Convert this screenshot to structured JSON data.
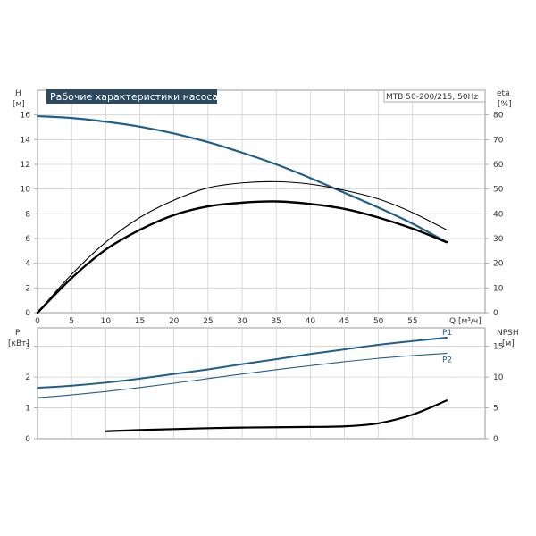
{
  "chart_data": [
    {
      "type": "line",
      "title": "Рабочие характеристики насоса",
      "model": "MTB 50-200/215, 50Hz",
      "xlabel": "Q [м³/ч]",
      "xlim": [
        0,
        60
      ],
      "x_ticks": [
        "0",
        "5",
        "10",
        "15",
        "20",
        "25",
        "30",
        "35",
        "40",
        "45",
        "50",
        "55"
      ],
      "ylabel_left": [
        "H",
        "[м]"
      ],
      "ylim_left": [
        0,
        18
      ],
      "y_ticks_left": [
        "0",
        "2",
        "4",
        "6",
        "8",
        "10",
        "12",
        "14",
        "16"
      ],
      "ylabel_right": [
        "eta",
        "[%]"
      ],
      "ylim_right": [
        0,
        90
      ],
      "y_ticks_right": [
        "0",
        "10",
        "20",
        "30",
        "40",
        "50",
        "60",
        "70",
        "80"
      ],
      "grid": true,
      "colors": {
        "head": "#1f5f8b",
        "efficiency": "#000000",
        "title_bg": "#2d4a5e"
      },
      "series": [
        {
          "axis": "left",
          "x": [
            0,
            5,
            10,
            15,
            20,
            25,
            30,
            35,
            40,
            45,
            50,
            55,
            60
          ],
          "y": [
            15.9,
            15.75,
            15.45,
            15.05,
            14.5,
            13.8,
            12.95,
            12.0,
            10.9,
            9.7,
            8.5,
            7.2,
            5.7
          ]
        },
        {
          "axis": "right",
          "x": [
            0,
            5,
            10,
            15,
            20,
            25,
            30,
            35,
            40,
            45,
            50,
            55,
            60
          ],
          "y": [
            0,
            14,
            25.5,
            33.5,
            39.5,
            43,
            44.5,
            45,
            44,
            42,
            38.5,
            34,
            28.5
          ]
        },
        {
          "axis": "right",
          "x": [
            0,
            5,
            10,
            15,
            20,
            25,
            30,
            35,
            40,
            45,
            50,
            55,
            60
          ],
          "y": [
            0,
            15.5,
            28.5,
            38.5,
            45.5,
            50.5,
            52.5,
            53,
            52,
            49.5,
            46,
            40.5,
            33.5
          ]
        }
      ]
    },
    {
      "type": "line",
      "xlim": [
        0,
        60
      ],
      "ylabel_left": [
        "P",
        "[кВт]"
      ],
      "ylim_left": [
        0,
        3.6
      ],
      "y_ticks_left": [
        "0",
        "1",
        "2",
        "3"
      ],
      "ylabel_right": [
        "NPSH",
        "[м]"
      ],
      "ylim_right": [
        0,
        18
      ],
      "y_ticks_right": [
        "0",
        "5",
        "10",
        "15"
      ],
      "grid": true,
      "colors": {
        "P1": "#1f5f8b",
        "P2": "#1f5f8b",
        "npsh": "#000000"
      },
      "series": [
        {
          "name": "P1",
          "axis": "left",
          "x": [
            0,
            5,
            10,
            15,
            20,
            25,
            30,
            35,
            40,
            45,
            50,
            55,
            60
          ],
          "y": [
            1.65,
            1.72,
            1.82,
            1.95,
            2.1,
            2.25,
            2.42,
            2.58,
            2.75,
            2.9,
            3.05,
            3.17,
            3.28
          ]
        },
        {
          "name": "P2",
          "axis": "left",
          "x": [
            0,
            5,
            10,
            15,
            20,
            25,
            30,
            35,
            40,
            45,
            50,
            55,
            60
          ],
          "y": [
            1.33,
            1.42,
            1.53,
            1.66,
            1.8,
            1.95,
            2.1,
            2.24,
            2.37,
            2.5,
            2.61,
            2.7,
            2.77
          ]
        },
        {
          "axis": "right",
          "x": [
            10,
            15,
            20,
            25,
            30,
            35,
            40,
            45,
            50,
            55,
            60
          ],
          "y": [
            1.2,
            1.4,
            1.55,
            1.7,
            1.8,
            1.85,
            1.9,
            2.0,
            2.5,
            3.9,
            6.2
          ]
        }
      ]
    }
  ]
}
